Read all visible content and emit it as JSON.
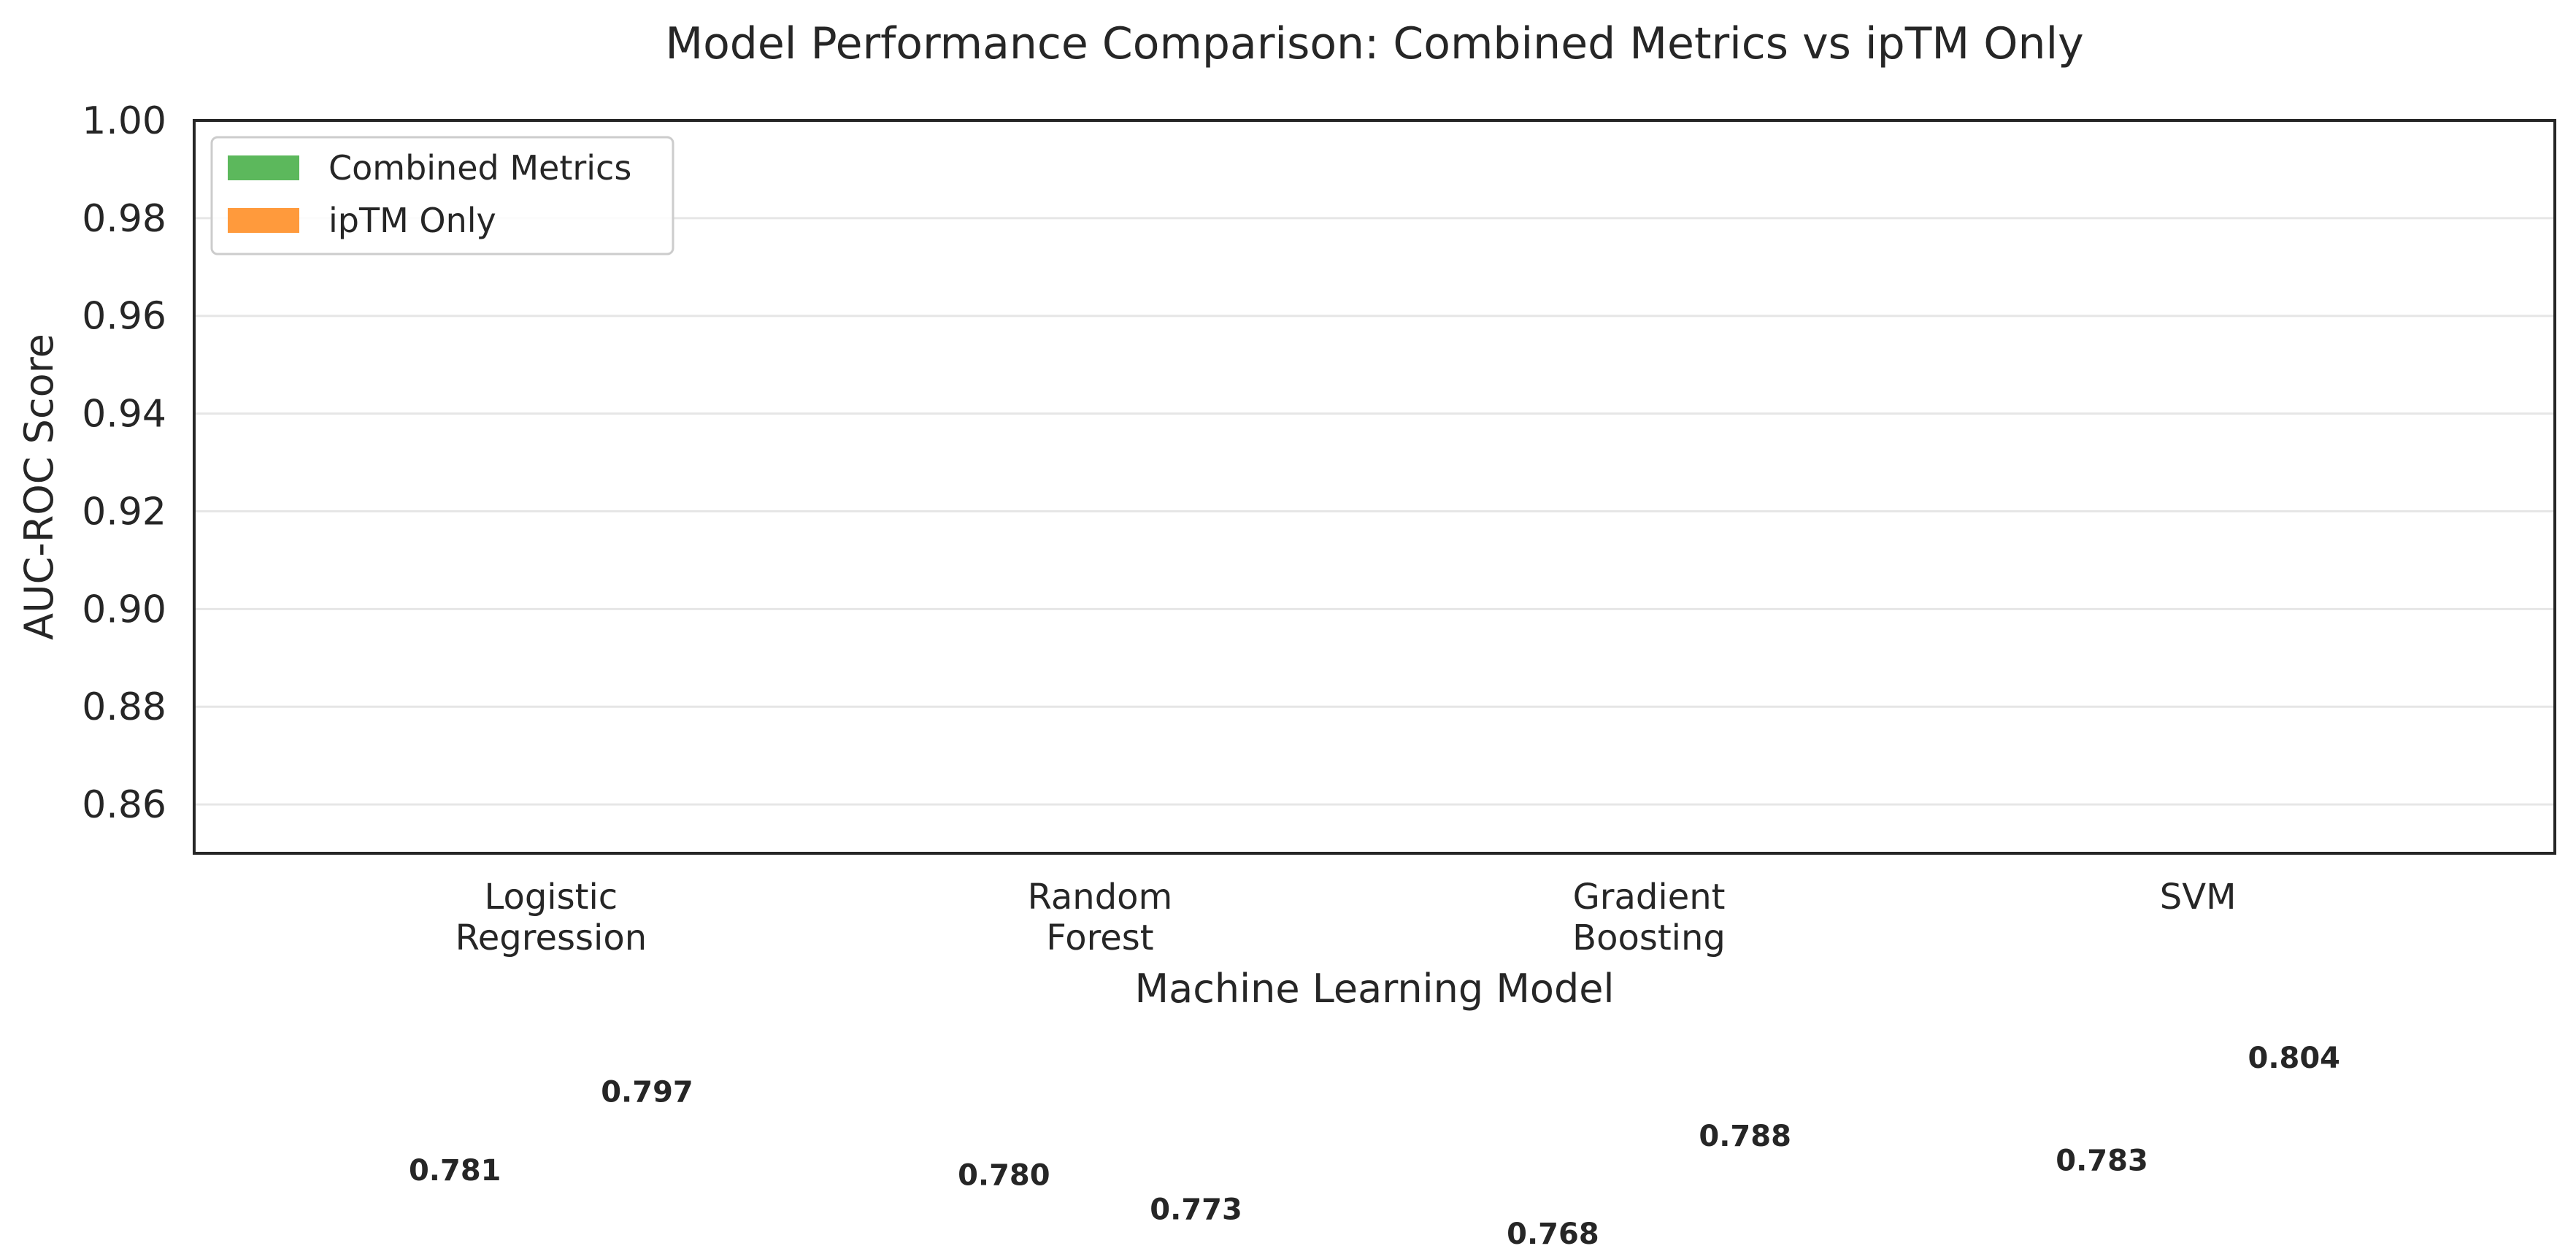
{
  "chart_data": {
    "type": "bar",
    "title": "Model Performance Comparison: Combined Metrics vs ipTM Only",
    "xlabel": "Machine Learning Model",
    "ylabel": "AUC-ROC Score",
    "categories": [
      "Logistic\nRegression",
      "Random\nForest",
      "Gradient\nBoosting",
      "SVM"
    ],
    "series": [
      {
        "name": "Combined Metrics",
        "color": "#5cb85c",
        "values": [
          0.781,
          0.78,
          0.768,
          0.783
        ]
      },
      {
        "name": "ipTM Only",
        "color": "#ff9a3c",
        "values": [
          0.797,
          0.773,
          0.788,
          0.804
        ]
      }
    ],
    "ylim": [
      0.85,
      1.0
    ],
    "yticks": [
      "0.86",
      "0.88",
      "0.90",
      "0.92",
      "0.94",
      "0.96",
      "0.98",
      "1.00"
    ],
    "data_labels": [
      "0.781",
      "0.797",
      "0.780",
      "0.773",
      "0.768",
      "0.788",
      "0.783",
      "0.804"
    ],
    "grid": "horizontal",
    "legend_position": "upper-left"
  }
}
